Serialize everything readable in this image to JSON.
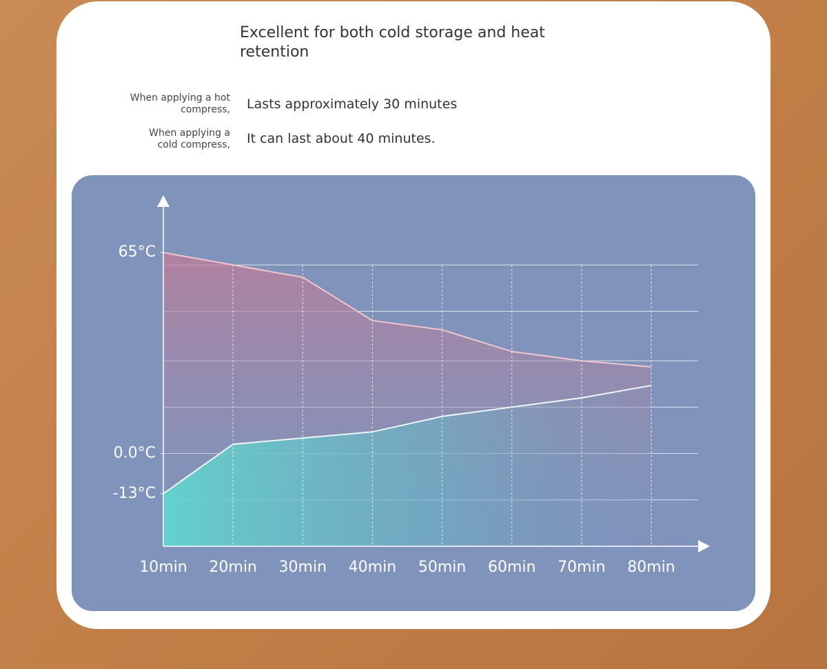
{
  "header": {
    "title": "Excellent for both cold storage and heat retention"
  },
  "notes": [
    {
      "label": "When applying a hot compress,",
      "value": "Lasts approximately 30 minutes"
    },
    {
      "label": "When applying a cold compress,",
      "value": "It can last about 40 minutes."
    }
  ],
  "chart_data": {
    "type": "area",
    "categories": [
      "10min",
      "20min",
      "30min",
      "40min",
      "50min",
      "60min",
      "70min",
      "80min"
    ],
    "series": [
      {
        "name": "hot",
        "color": "#f2c6cf",
        "values": [
          65,
          61,
          57,
          43,
          40,
          33,
          30,
          28
        ]
      },
      {
        "name": "cold",
        "color": "#eef8f8",
        "values": [
          -13,
          3,
          5,
          7,
          12,
          15,
          18,
          22
        ]
      }
    ],
    "ylim": [
      -30,
      80
    ],
    "yticks": [
      {
        "value": 65,
        "label": "65°C"
      },
      {
        "value": 0,
        "label": "0.0°C"
      },
      {
        "value": -13,
        "label": "-13°C"
      }
    ],
    "ygrid": [
      -15,
      0,
      15,
      30,
      46,
      61
    ],
    "grid": true
  }
}
